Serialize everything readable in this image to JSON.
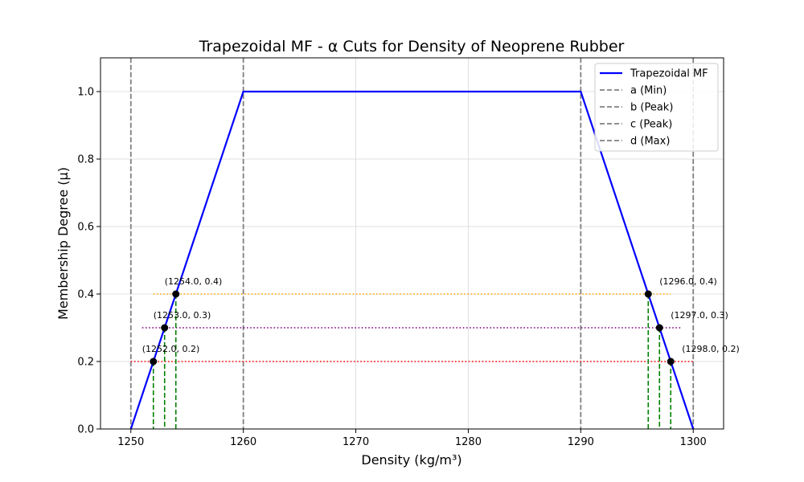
{
  "chart_data": {
    "type": "line",
    "title": "Trapezoidal MF - α Cuts for Density of Neoprene Rubber",
    "xlabel": "Density (kg/m³)",
    "ylabel": "Membership Degree (μ)",
    "xlim": [
      1247.3,
      1302.7
    ],
    "ylim": [
      0,
      1.1
    ],
    "xticks": [
      1250,
      1260,
      1270,
      1280,
      1290,
      1300
    ],
    "yticks": [
      0.0,
      0.2,
      0.4,
      0.6,
      0.8,
      1.0
    ],
    "grid": true,
    "legend_position": "top-right",
    "series": [
      {
        "name": "Trapezoidal MF",
        "color": "#0000ff",
        "x": [
          1250,
          1260,
          1290,
          1300
        ],
        "y": [
          0,
          1,
          1,
          0
        ]
      }
    ],
    "reference_lines": [
      {
        "name": "a (Min)",
        "x": 1250,
        "color": "#808080"
      },
      {
        "name": "b (Peak)",
        "x": 1260,
        "color": "#808080"
      },
      {
        "name": "c (Peak)",
        "x": 1290,
        "color": "#808080"
      },
      {
        "name": "d (Max)",
        "x": 1300,
        "color": "#808080"
      }
    ],
    "alpha_cuts": [
      {
        "alpha": 0.2,
        "color": "#ff0000",
        "x_from": 1250,
        "x_to": 1300,
        "left": 1252.0,
        "right": 1298.0,
        "left_label": "(1252.0, 0.2)",
        "right_label": "(1298.0, 0.2)"
      },
      {
        "alpha": 0.3,
        "color": "#800080",
        "x_from": 1251,
        "x_to": 1299,
        "left": 1253.0,
        "right": 1297.0,
        "left_label": "(1253.0, 0.3)",
        "right_label": "(1297.0, 0.3)"
      },
      {
        "alpha": 0.4,
        "color": "#ffa500",
        "x_from": 1252,
        "x_to": 1298,
        "left": 1254.0,
        "right": 1296.0,
        "left_label": "(1254.0, 0.4)",
        "right_label": "(1296.0, 0.4)"
      }
    ],
    "drop_line_color": "#008000",
    "point_color": "#000000"
  }
}
